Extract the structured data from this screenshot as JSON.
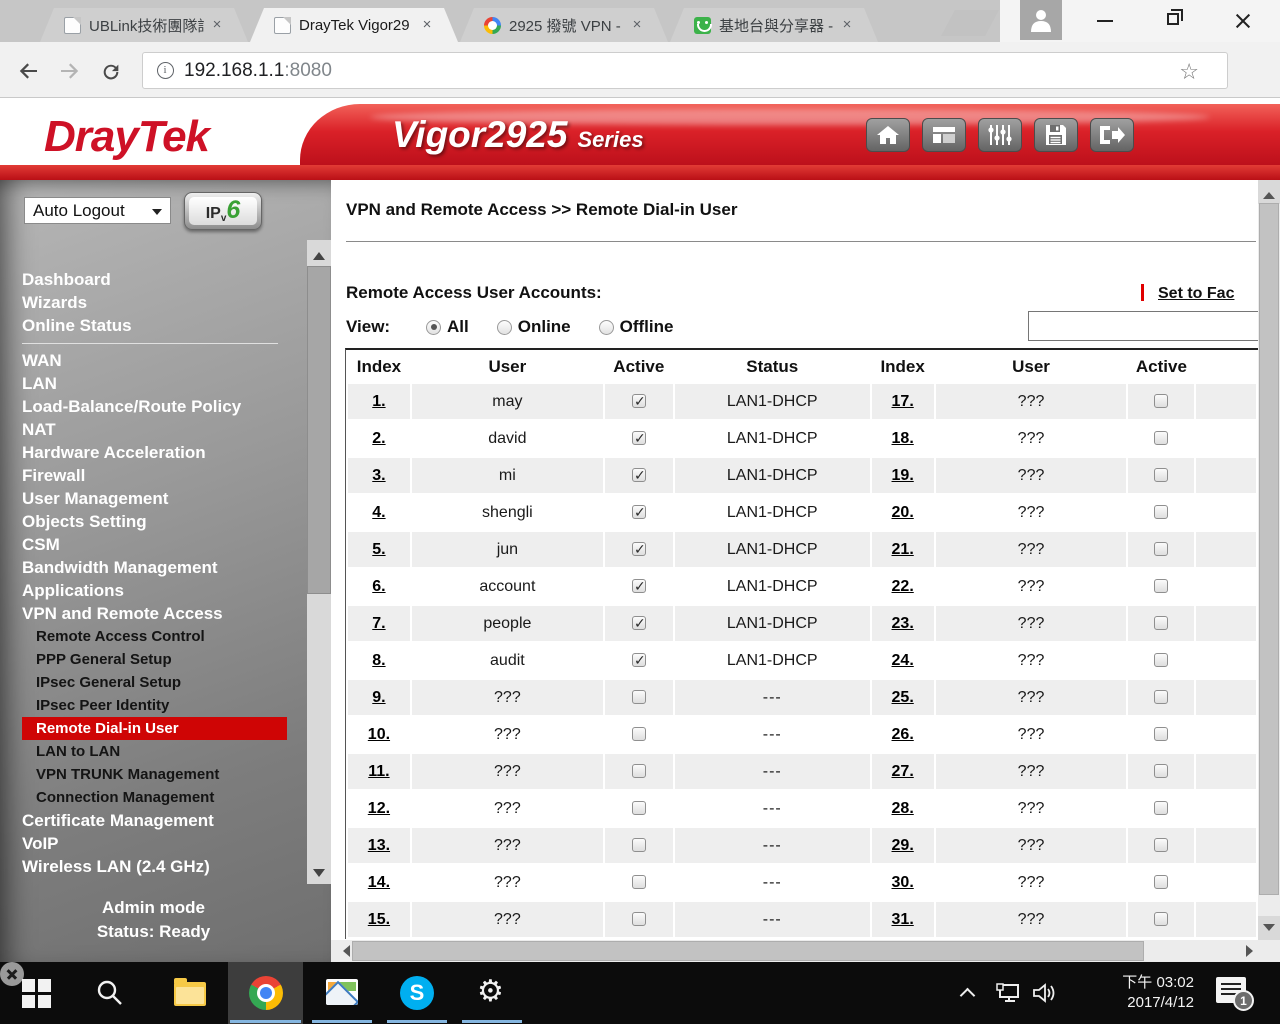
{
  "browser": {
    "tabs": [
      {
        "title": "UBLink技術團隊討",
        "favicon": "page",
        "active": false
      },
      {
        "title": "DrayTek Vigor29",
        "favicon": "page",
        "active": true
      },
      {
        "title": "2925 撥號 VPN -",
        "favicon": "google",
        "active": false
      },
      {
        "title": "基地台與分享器 -",
        "favicon": "green",
        "active": false
      }
    ],
    "url_host": "192.168.1.1",
    "url_port": ":8080"
  },
  "app_header": {
    "brand": "DrayTek",
    "model": "Vigor2925",
    "series": "Series",
    "accent_red": "#ce1126"
  },
  "sidebar": {
    "auto_logout_label": "Auto Logout",
    "ipv6_ip": "IP",
    "ipv6_v": "v",
    "ipv6_six": "6",
    "menu": [
      {
        "label": "Dashboard",
        "level": "top"
      },
      {
        "label": "Wizards",
        "level": "top"
      },
      {
        "label": "Online Status",
        "level": "top"
      },
      {
        "divider": true
      },
      {
        "label": "WAN",
        "level": "top"
      },
      {
        "label": "LAN",
        "level": "top"
      },
      {
        "label": "Load-Balance/Route Policy",
        "level": "top"
      },
      {
        "label": "NAT",
        "level": "top"
      },
      {
        "label": "Hardware Acceleration",
        "level": "top"
      },
      {
        "label": "Firewall",
        "level": "top"
      },
      {
        "label": "User Management",
        "level": "top"
      },
      {
        "label": "Objects Setting",
        "level": "top"
      },
      {
        "label": "CSM",
        "level": "top"
      },
      {
        "label": "Bandwidth Management",
        "level": "top"
      },
      {
        "label": "Applications",
        "level": "top"
      },
      {
        "label": "VPN and Remote Access",
        "level": "top"
      },
      {
        "label": "Remote Access Control",
        "level": "sub"
      },
      {
        "label": "PPP General Setup",
        "level": "sub"
      },
      {
        "label": "IPsec General Setup",
        "level": "sub"
      },
      {
        "label": "IPsec Peer Identity",
        "level": "sub"
      },
      {
        "label": "Remote Dial-in User",
        "level": "sub",
        "active": true
      },
      {
        "label": "LAN to LAN",
        "level": "sub"
      },
      {
        "label": "VPN TRUNK Management",
        "level": "sub"
      },
      {
        "label": "Connection Management",
        "level": "sub"
      },
      {
        "label": "Certificate Management",
        "level": "top"
      },
      {
        "label": "VoIP",
        "level": "top"
      },
      {
        "label": "Wireless LAN (2.4 GHz)",
        "level": "top"
      }
    ],
    "footer_mode": "Admin mode",
    "footer_status": "Status: Ready",
    "active_bg": "#cf0505"
  },
  "main": {
    "breadcrumb": "VPN and Remote Access >> Remote Dial-in User",
    "section_title": "Remote Access User Accounts:",
    "view_label": "View:",
    "view_options": [
      {
        "label": "All",
        "selected": true
      },
      {
        "label": "Online",
        "selected": false
      },
      {
        "label": "Offline",
        "selected": false
      }
    ],
    "set_link": "Set to Fac",
    "filter_value": "",
    "status_red": "#f40000",
    "table": {
      "headers": [
        "Index",
        "User",
        "Active",
        "Status",
        "Index",
        "User",
        "Active"
      ],
      "rows": [
        {
          "index": "1.",
          "user": "may",
          "active": true,
          "status": "LAN1-DHCP",
          "index2": "17.",
          "user2": "???",
          "active2": false
        },
        {
          "index": "2.",
          "user": "david",
          "active": true,
          "status": "LAN1-DHCP",
          "index2": "18.",
          "user2": "???",
          "active2": false
        },
        {
          "index": "3.",
          "user": "mi",
          "active": true,
          "status": "LAN1-DHCP",
          "index2": "19.",
          "user2": "???",
          "active2": false
        },
        {
          "index": "4.",
          "user": "shengli",
          "active": true,
          "status": "LAN1-DHCP",
          "index2": "20.",
          "user2": "???",
          "active2": false
        },
        {
          "index": "5.",
          "user": "jun",
          "active": true,
          "status": "LAN1-DHCP",
          "index2": "21.",
          "user2": "???",
          "active2": false
        },
        {
          "index": "6.",
          "user": "account",
          "active": true,
          "status": "LAN1-DHCP",
          "index2": "22.",
          "user2": "???",
          "active2": false
        },
        {
          "index": "7.",
          "user": "people",
          "active": true,
          "status": "LAN1-DHCP",
          "index2": "23.",
          "user2": "???",
          "active2": false
        },
        {
          "index": "8.",
          "user": "audit",
          "active": true,
          "status": "LAN1-DHCP",
          "index2": "24.",
          "user2": "???",
          "active2": false
        },
        {
          "index": "9.",
          "user": "???",
          "active": false,
          "status": "---",
          "index2": "25.",
          "user2": "???",
          "active2": false
        },
        {
          "index": "10.",
          "user": "???",
          "active": false,
          "status": "---",
          "index2": "26.",
          "user2": "???",
          "active2": false
        },
        {
          "index": "11.",
          "user": "???",
          "active": false,
          "status": "---",
          "index2": "27.",
          "user2": "???",
          "active2": false
        },
        {
          "index": "12.",
          "user": "???",
          "active": false,
          "status": "---",
          "index2": "28.",
          "user2": "???",
          "active2": false
        },
        {
          "index": "13.",
          "user": "???",
          "active": false,
          "status": "---",
          "index2": "29.",
          "user2": "???",
          "active2": false
        },
        {
          "index": "14.",
          "user": "???",
          "active": false,
          "status": "---",
          "index2": "30.",
          "user2": "???",
          "active2": false
        },
        {
          "index": "15.",
          "user": "???",
          "active": false,
          "status": "---",
          "index2": "31.",
          "user2": "???",
          "active2": false
        }
      ]
    }
  },
  "taskbar": {
    "tray_time": "下午 03:02",
    "tray_date": "2017/4/12",
    "notification_count": "1",
    "open_underline_color": "#85b6e0"
  }
}
